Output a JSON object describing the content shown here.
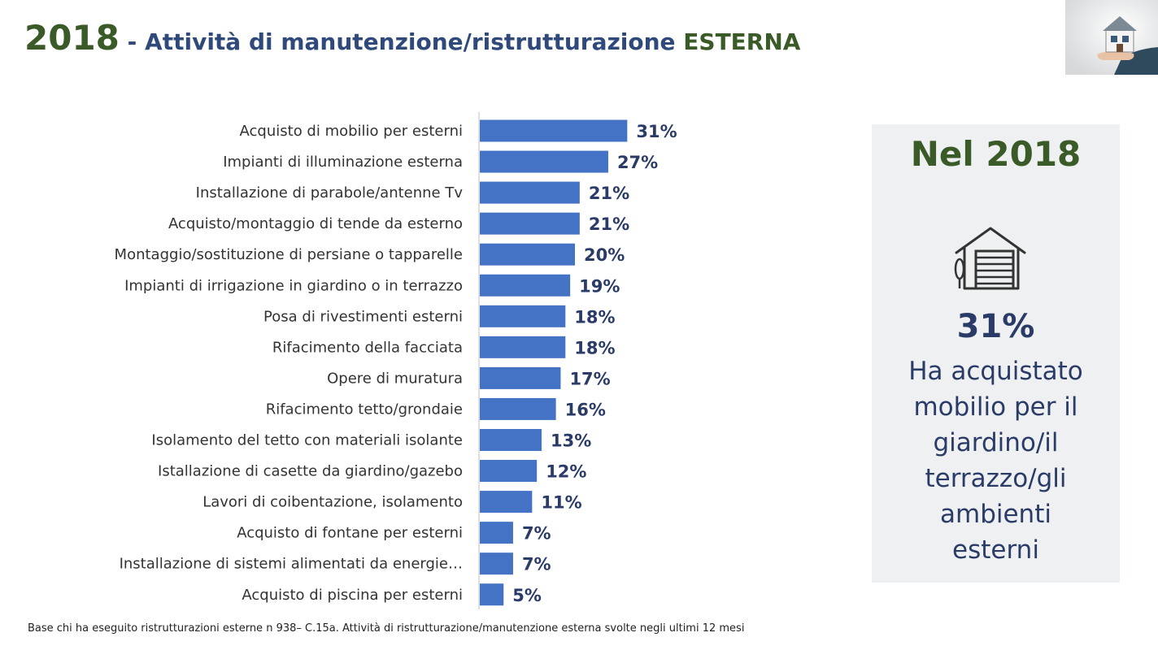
{
  "header": {
    "year": "2018",
    "separator": " - ",
    "title_main": "Attività di manutenzione/ristrutturazione ",
    "title_accent": "ESTERNA"
  },
  "colors": {
    "bar": "#4472c4",
    "value_text": "#2a3b68",
    "year_green": "#3a5a27",
    "panel_bg": "#eef0f1"
  },
  "chart_data": {
    "type": "bar",
    "orientation": "horizontal",
    "title": "",
    "xlabel": "",
    "ylabel": "",
    "categories": [
      "Acquisto di mobilio per esterni",
      "Impianti di illuminazione esterna",
      "Installazione di parabole/antenne Tv",
      "Acquisto/montaggio di tende da esterno",
      "Montaggio/sostituzione di persiane o tapparelle",
      "Impianti di irrigazione in giardino o in terrazzo",
      "Posa di rivestimenti esterni",
      "Rifacimento della facciata",
      "Opere di muratura",
      "Rifacimento tetto/grondaie",
      "Isolamento del tetto con materiali isolante",
      "Istallazione di casette da giardino/gazebo",
      "Lavori di coibentazione, isolamento",
      "Acquisto di fontane per esterni",
      "Installazione di sistemi alimentati da energie…",
      "Acquisto di piscina per esterni"
    ],
    "values": [
      31,
      27,
      21,
      21,
      20,
      19,
      18,
      18,
      17,
      16,
      13,
      12,
      11,
      7,
      7,
      5
    ],
    "value_labels": [
      "31%",
      "27%",
      "21%",
      "21%",
      "20%",
      "19%",
      "18%",
      "18%",
      "17%",
      "16%",
      "13%",
      "12%",
      "11%",
      "7%",
      "7%",
      "5%"
    ],
    "unit": "%",
    "grid": false,
    "legend": "none"
  },
  "side_panel": {
    "title": "Nel 2018",
    "icon": "house-garage-icon",
    "value": "31%",
    "lines": [
      "Ha acquistato",
      "mobilio per il",
      "giardino/il",
      "terrazzo/gli",
      "ambienti",
      "esterni"
    ]
  },
  "footnote": "Base chi ha eseguito ristrutturazioni esterne n 938– C.15a. Attività di ristrutturazione/manutenzione esterna svolte negli ultimi 12 mesi"
}
